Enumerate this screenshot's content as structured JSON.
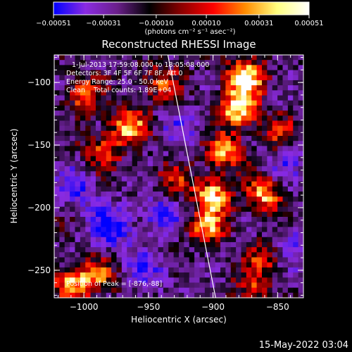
{
  "chart_data": {
    "type": "heatmap",
    "title": "Reconstructed RHESSI Image",
    "xlabel": "Heliocentric X (arcsec)",
    "ylabel": "Heliocentric Y (arcsec)",
    "xlim": [
      -1023,
      -830
    ],
    "ylim": [
      -272,
      -78
    ],
    "x_ticks": [
      {
        "value": -1000,
        "label": "−1000"
      },
      {
        "value": -950,
        "label": "−950"
      },
      {
        "value": -900,
        "label": "−900"
      },
      {
        "value": -850,
        "label": "−850"
      }
    ],
    "y_ticks": [
      {
        "value": -100,
        "label": "−100"
      },
      {
        "value": -150,
        "label": "−150"
      },
      {
        "value": -200,
        "label": "−200"
      },
      {
        "value": -250,
        "label": "−250"
      }
    ],
    "colorbar": {
      "min": -0.00051,
      "max": 0.00051,
      "ticks": [
        "−0.00051",
        "−0.00031",
        "−0.00010",
        "0.00010",
        "0.00031",
        "0.00051"
      ],
      "tick_values": [
        -0.00051,
        -0.00031,
        -0.0001,
        0.0001,
        0.00031,
        0.00051
      ],
      "units_label": "(photons cm⁻² s⁻¹ asec⁻²)",
      "colors": [
        "#0000ff",
        "#8a2be2",
        "#6a1f8a",
        "#000000",
        "#8b0000",
        "#ff0000",
        "#ff8c00",
        "#ffff80",
        "#ffffff"
      ]
    },
    "annotations": [
      "1-Jul-2013 17:59:08.000 to 18:05:08.000",
      "Detectors: 3F 4F 5F 6F 7F 8F, Att 0",
      "Energy Range: 25.0 - 50.0 keV",
      "Clean    Total counts: 1.89E+04",
      "Position of Peak = [-876,-88]"
    ],
    "limb_line": {
      "x": [
        -935,
        -898
      ],
      "y": [
        -78,
        -272
      ]
    },
    "bright_regions": [
      {
        "x": -880,
        "y": -120,
        "level": 1.0
      },
      {
        "x": -875,
        "y": -95,
        "level": 0.95
      },
      {
        "x": -890,
        "y": -155,
        "level": 0.75
      },
      {
        "x": -900,
        "y": -190,
        "level": 0.85
      },
      {
        "x": -905,
        "y": -215,
        "level": 0.7
      },
      {
        "x": -965,
        "y": -135,
        "level": 0.75
      },
      {
        "x": -1000,
        "y": -110,
        "level": 0.6
      },
      {
        "x": -985,
        "y": -155,
        "level": 0.55
      },
      {
        "x": -1010,
        "y": -260,
        "level": 0.7
      },
      {
        "x": -990,
        "y": -255,
        "level": 0.55
      },
      {
        "x": -860,
        "y": -190,
        "level": 0.75
      },
      {
        "x": -850,
        "y": -140,
        "level": 0.45
      },
      {
        "x": -860,
        "y": -240,
        "level": 0.5
      },
      {
        "x": -940,
        "y": -100,
        "level": 0.5
      },
      {
        "x": -930,
        "y": -180,
        "level": 0.4
      },
      {
        "x": -870,
        "y": -265,
        "level": 0.45
      }
    ],
    "dark_regions": [
      {
        "x": -980,
        "y": -215,
        "level": 0.9
      },
      {
        "x": -940,
        "y": -205,
        "level": 0.6
      },
      {
        "x": -1005,
        "y": -185,
        "level": 0.6
      },
      {
        "x": -950,
        "y": -250,
        "level": 0.5
      },
      {
        "x": -840,
        "y": -230,
        "level": 0.55
      },
      {
        "x": -845,
        "y": -165,
        "level": 0.4
      },
      {
        "x": -925,
        "y": -135,
        "level": 0.35
      }
    ]
  },
  "footer": {
    "date": "15-May-2022 03:04"
  }
}
